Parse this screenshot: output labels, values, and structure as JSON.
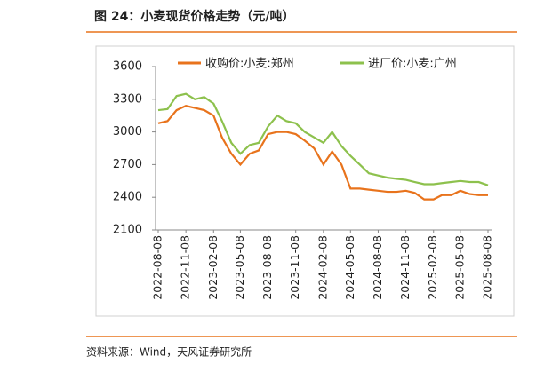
{
  "chart_data": {
    "type": "line",
    "title": "图 24：小麦现货价格走势（元/吨）",
    "source": "资料来源：Wind，天风证券研究所",
    "x": [
      "2022-08-08",
      "2022-09-08",
      "2022-10-08",
      "2022-11-08",
      "2022-12-08",
      "2023-01-08",
      "2023-02-08",
      "2023-03-08",
      "2023-04-08",
      "2023-05-08",
      "2023-06-08",
      "2023-07-08",
      "2023-08-08",
      "2023-09-08",
      "2023-10-08",
      "2023-11-08",
      "2023-12-08",
      "2024-01-08",
      "2024-02-08",
      "2024-03-08",
      "2024-04-08",
      "2024-05-08",
      "2024-06-08",
      "2024-07-08",
      "2024-08-08",
      "2024-09-08",
      "2024-10-08",
      "2024-11-08",
      "2024-12-08",
      "2025-01-08",
      "2025-02-08",
      "2025-03-08",
      "2025-04-08",
      "2025-05-08",
      "2025-06-08",
      "2025-07-08",
      "2025-08-08"
    ],
    "series": [
      {
        "name": "收购价:小麦:郑州",
        "color": "#e8731c",
        "values": [
          3080,
          3100,
          3200,
          3240,
          3220,
          3200,
          3150,
          2950,
          2800,
          2700,
          2800,
          2830,
          2980,
          3000,
          3000,
          2980,
          2920,
          2850,
          2700,
          2820,
          2700,
          2480,
          2480,
          2470,
          2460,
          2450,
          2450,
          2460,
          2440,
          2380,
          2380,
          2420,
          2420,
          2460,
          2430,
          2420,
          2420
        ]
      },
      {
        "name": "进厂价:小麦:广州",
        "color": "#8dc14d",
        "values": [
          3200,
          3210,
          3330,
          3350,
          3300,
          3320,
          3260,
          3100,
          2900,
          2800,
          2880,
          2900,
          3050,
          3150,
          3100,
          3080,
          3000,
          2950,
          2900,
          3000,
          2870,
          2780,
          2700,
          2620,
          2600,
          2580,
          2570,
          2560,
          2540,
          2520,
          2520,
          2530,
          2540,
          2550,
          2540,
          2540,
          2510
        ]
      }
    ],
    "xlim": [
      "2022-08-08",
      "2025-08-08"
    ],
    "xticks": [
      "2022-08-08",
      "2022-11-08",
      "2023-02-08",
      "2023-05-08",
      "2023-08-08",
      "2023-11-08",
      "2024-02-08",
      "2024-05-08",
      "2024-08-08",
      "2024-11-08",
      "2025-02-08",
      "2025-05-08",
      "2025-08-08"
    ],
    "ylim": [
      2100,
      3600
    ],
    "yticks": [
      2100,
      2400,
      2700,
      3000,
      3300,
      3600
    ],
    "legend": "top"
  }
}
